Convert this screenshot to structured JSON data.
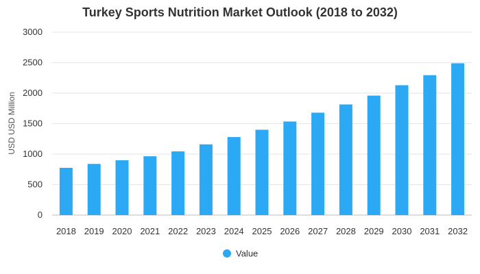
{
  "chart_data": {
    "type": "bar",
    "title": "Turkey Sports Nutrition Market Outlook (2018 to 2032)",
    "xlabel": "",
    "ylabel": "USD USD Million",
    "categories": [
      "2018",
      "2019",
      "2020",
      "2021",
      "2022",
      "2023",
      "2024",
      "2025",
      "2026",
      "2027",
      "2028",
      "2029",
      "2030",
      "2031",
      "2032"
    ],
    "series": [
      {
        "name": "Value",
        "values": [
          775,
          840,
          900,
          965,
          1045,
          1160,
          1280,
          1400,
          1535,
          1680,
          1815,
          1960,
          2130,
          2295,
          2490
        ]
      }
    ],
    "ylim": [
      0,
      3000
    ],
    "yticks": [
      "0",
      "500",
      "1000",
      "1500",
      "2000",
      "2500",
      "3000"
    ],
    "grid": true,
    "legend_position": "bottom",
    "bar_color": "#2ba9f5"
  }
}
